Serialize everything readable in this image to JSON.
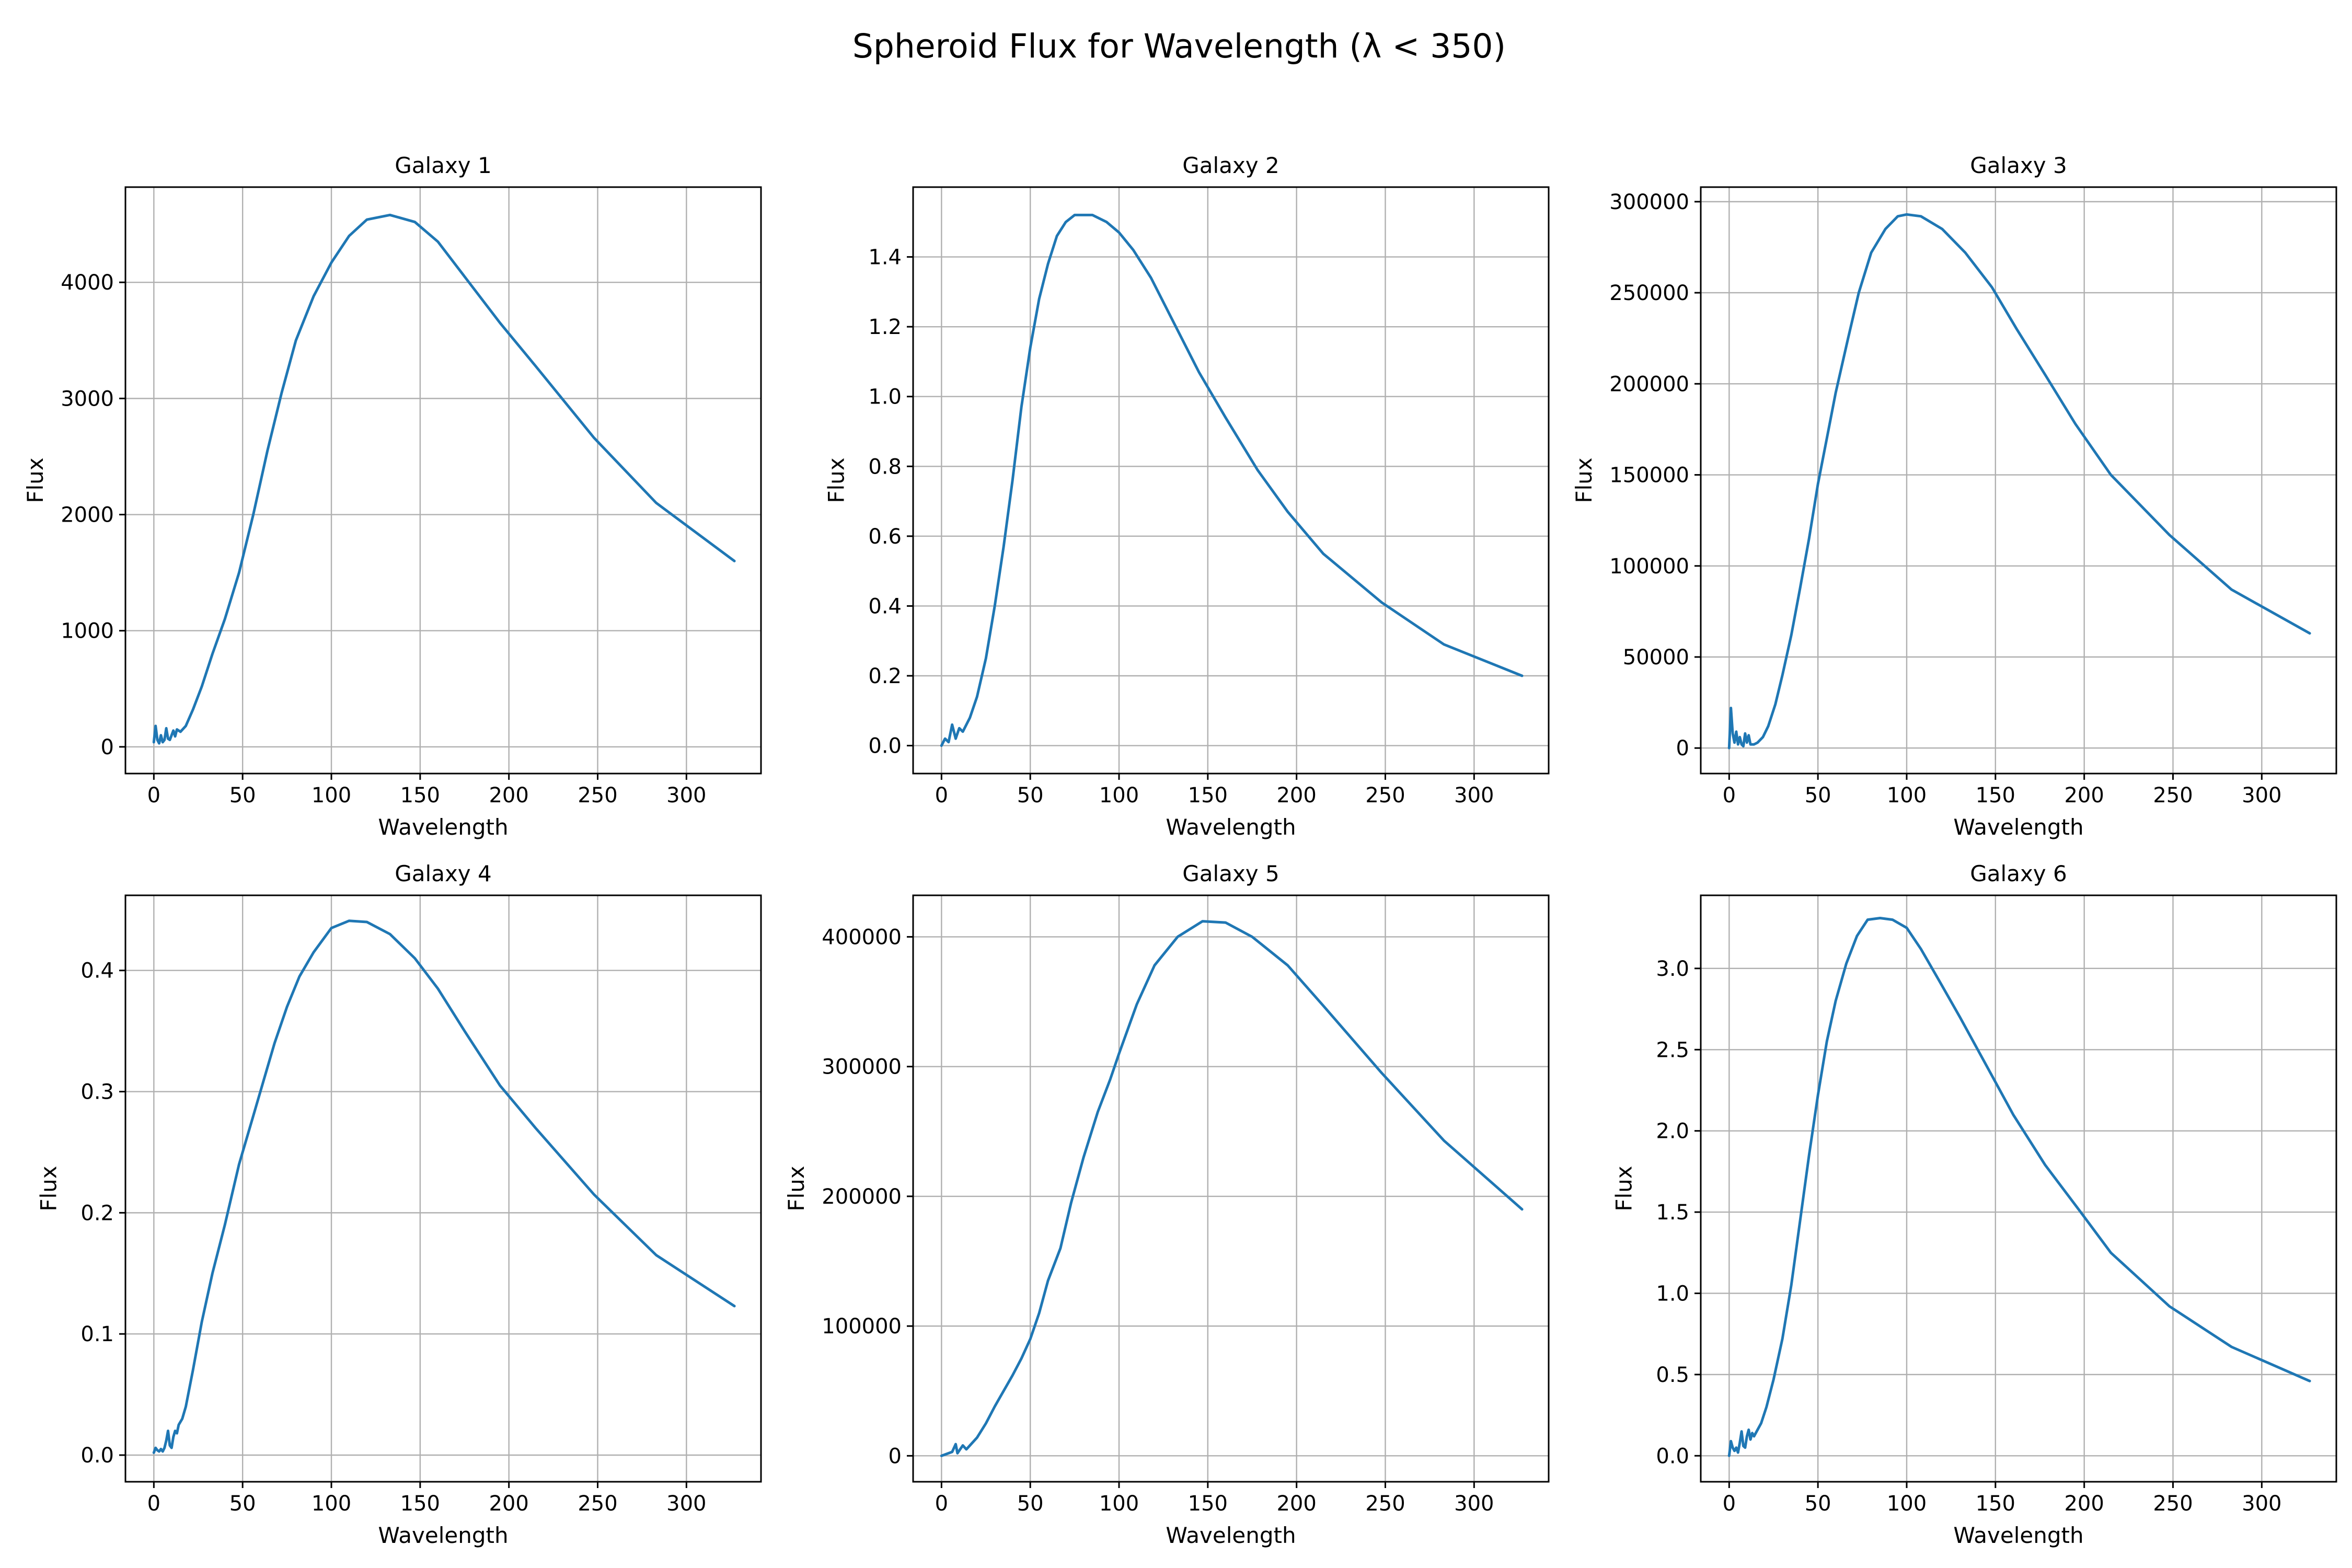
{
  "figure": {
    "title": "Spheroid Flux for Wavelength (λ < 350)"
  },
  "colors": {
    "series": "#1f77b4"
  },
  "chart_data": [
    {
      "type": "line",
      "title": "Galaxy 1",
      "xlabel": "Wavelength",
      "ylabel": "Flux",
      "xlim": [
        -16,
        342
      ],
      "ylim": [
        -230,
        4820
      ],
      "xticks": [
        0,
        50,
        100,
        150,
        200,
        250,
        300
      ],
      "yticks": [
        0,
        1000,
        2000,
        3000,
        4000
      ],
      "ytick_labels": [
        "0",
        "1000",
        "2000",
        "3000",
        "4000"
      ],
      "grid": true,
      "series": [
        {
          "x": [
            0,
            1,
            2,
            3,
            4,
            5,
            6,
            7,
            8,
            9,
            10,
            11,
            12,
            13,
            15,
            18,
            22,
            27,
            33,
            40,
            48,
            56,
            64,
            72,
            80,
            90,
            100,
            110,
            120,
            133,
            147,
            160,
            175,
            195,
            215,
            248,
            283,
            327
          ],
          "y": [
            40,
            180,
            60,
            30,
            100,
            40,
            60,
            160,
            70,
            60,
            100,
            140,
            90,
            150,
            130,
            180,
            320,
            520,
            800,
            1100,
            1500,
            2000,
            2550,
            3050,
            3500,
            3880,
            4170,
            4400,
            4540,
            4580,
            4520,
            4350,
            4050,
            3650,
            3280,
            2660,
            2100,
            1600
          ]
        }
      ]
    },
    {
      "type": "line",
      "title": "Galaxy 2",
      "xlabel": "Wavelength",
      "ylabel": "Flux",
      "xlim": [
        -16,
        342
      ],
      "ylim": [
        -0.08,
        1.6
      ],
      "xticks": [
        0,
        50,
        100,
        150,
        200,
        250,
        300
      ],
      "yticks": [
        0,
        0.2,
        0.4,
        0.6,
        0.8,
        1.0,
        1.2,
        1.4
      ],
      "ytick_labels": [
        "0.0",
        "0.2",
        "0.4",
        "0.6",
        "0.8",
        "1.0",
        "1.2",
        "1.4"
      ],
      "grid": true,
      "series": [
        {
          "x": [
            0,
            2,
            4,
            6,
            8,
            10,
            12,
            14,
            16,
            20,
            25,
            30,
            35,
            40,
            45,
            50,
            55,
            60,
            65,
            70,
            75,
            80,
            85,
            93,
            100,
            108,
            118,
            130,
            145,
            160,
            178,
            195,
            215,
            248,
            283,
            327
          ],
          "y": [
            0.0,
            0.02,
            0.01,
            0.06,
            0.02,
            0.05,
            0.04,
            0.06,
            0.08,
            0.14,
            0.25,
            0.4,
            0.57,
            0.76,
            0.97,
            1.14,
            1.28,
            1.38,
            1.46,
            1.5,
            1.52,
            1.52,
            1.52,
            1.5,
            1.47,
            1.42,
            1.34,
            1.22,
            1.07,
            0.94,
            0.79,
            0.67,
            0.55,
            0.41,
            0.29,
            0.2
          ]
        }
      ]
    },
    {
      "type": "line",
      "title": "Galaxy 3",
      "xlabel": "Wavelength",
      "ylabel": "Flux",
      "xlim": [
        -16,
        342
      ],
      "ylim": [
        -14000,
        308000
      ],
      "xticks": [
        0,
        50,
        100,
        150,
        200,
        250,
        300
      ],
      "yticks": [
        0,
        50000,
        100000,
        150000,
        200000,
        250000,
        300000
      ],
      "ytick_labels": [
        "0",
        "50000",
        "100000",
        "150000",
        "200000",
        "250000",
        "300000"
      ],
      "grid": true,
      "series": [
        {
          "x": [
            0,
            1,
            2,
            3,
            4,
            5,
            6,
            7,
            8,
            9,
            10,
            11,
            12,
            14,
            16,
            19,
            22,
            26,
            30,
            35,
            40,
            45,
            50,
            55,
            60,
            67,
            73,
            80,
            88,
            95,
            100,
            108,
            120,
            133,
            148,
            162,
            178,
            195,
            215,
            248,
            283,
            327
          ],
          "y": [
            0,
            22000,
            8000,
            3000,
            9000,
            2000,
            6000,
            2000,
            1000,
            8000,
            3000,
            7000,
            2000,
            2000,
            3000,
            6000,
            12000,
            24000,
            40000,
            62000,
            88000,
            115000,
            145000,
            170000,
            195000,
            225000,
            250000,
            272000,
            285000,
            292000,
            293000,
            292000,
            285000,
            272000,
            253000,
            230000,
            205000,
            178000,
            150000,
            117000,
            87000,
            63000
          ]
        }
      ]
    },
    {
      "type": "line",
      "title": "Galaxy 4",
      "xlabel": "Wavelength",
      "ylabel": "Flux",
      "xlim": [
        -16,
        342
      ],
      "ylim": [
        -0.022,
        0.462
      ],
      "xticks": [
        0,
        50,
        100,
        150,
        200,
        250,
        300
      ],
      "yticks": [
        0,
        0.1,
        0.2,
        0.3,
        0.4
      ],
      "ytick_labels": [
        "0.0",
        "0.1",
        "0.2",
        "0.3",
        "0.4"
      ],
      "grid": true,
      "series": [
        {
          "x": [
            0,
            1,
            2,
            3,
            4,
            5,
            6,
            7,
            8,
            9,
            10,
            11,
            12,
            13,
            14,
            16,
            18,
            22,
            27,
            33,
            40,
            48,
            56,
            62,
            68,
            75,
            82,
            90,
            100,
            110,
            120,
            133,
            147,
            160,
            175,
            195,
            215,
            248,
            283,
            327
          ],
          "y": [
            0.002,
            0.006,
            0.004,
            0.003,
            0.005,
            0.003,
            0.006,
            0.012,
            0.02,
            0.008,
            0.006,
            0.015,
            0.02,
            0.018,
            0.025,
            0.03,
            0.04,
            0.07,
            0.11,
            0.15,
            0.19,
            0.24,
            0.28,
            0.31,
            0.34,
            0.37,
            0.395,
            0.415,
            0.435,
            0.441,
            0.44,
            0.43,
            0.41,
            0.385,
            0.35,
            0.305,
            0.27,
            0.215,
            0.165,
            0.123
          ]
        }
      ]
    },
    {
      "type": "line",
      "title": "Galaxy 5",
      "xlabel": "Wavelength",
      "ylabel": "Flux",
      "xlim": [
        -16,
        342
      ],
      "ylim": [
        -20000,
        432000
      ],
      "xticks": [
        0,
        50,
        100,
        150,
        200,
        250,
        300
      ],
      "yticks": [
        0,
        100000,
        200000,
        300000,
        400000
      ],
      "ytick_labels": [
        "0",
        "100000",
        "200000",
        "300000",
        "400000"
      ],
      "grid": true,
      "series": [
        {
          "x": [
            0,
            2,
            4,
            6,
            8,
            9,
            10,
            12,
            14,
            16,
            20,
            25,
            30,
            35,
            40,
            45,
            50,
            55,
            60,
            67,
            73,
            80,
            88,
            95,
            100,
            110,
            120,
            133,
            147,
            160,
            175,
            195,
            215,
            248,
            283,
            327
          ],
          "y": [
            0,
            1000,
            2000,
            3000,
            9000,
            2000,
            4000,
            8000,
            5000,
            8000,
            14000,
            25000,
            38000,
            50000,
            62000,
            75000,
            90000,
            110000,
            135000,
            160000,
            195000,
            230000,
            265000,
            290000,
            310000,
            348000,
            378000,
            400000,
            412000,
            411000,
            400000,
            378000,
            347000,
            295000,
            243000,
            190000
          ]
        }
      ]
    },
    {
      "type": "line",
      "title": "Galaxy 6",
      "xlabel": "Wavelength",
      "ylabel": "Flux",
      "xlim": [
        -16,
        342
      ],
      "ylim": [
        -0.16,
        3.45
      ],
      "xticks": [
        0,
        50,
        100,
        150,
        200,
        250,
        300
      ],
      "yticks": [
        0,
        0.5,
        1.0,
        1.5,
        2.0,
        2.5,
        3.0
      ],
      "ytick_labels": [
        "0.0",
        "0.5",
        "1.0",
        "1.5",
        "2.0",
        "2.5",
        "3.0"
      ],
      "grid": true,
      "series": [
        {
          "x": [
            0,
            1,
            2,
            3,
            4,
            5,
            6,
            7,
            8,
            9,
            10,
            11,
            12,
            13,
            14,
            16,
            18,
            21,
            25,
            30,
            35,
            40,
            45,
            50,
            55,
            60,
            66,
            72,
            78,
            85,
            92,
            100,
            108,
            118,
            130,
            145,
            160,
            178,
            198,
            215,
            248,
            283,
            327
          ],
          "y": [
            0.0,
            0.09,
            0.05,
            0.03,
            0.05,
            0.02,
            0.08,
            0.15,
            0.06,
            0.05,
            0.12,
            0.16,
            0.1,
            0.14,
            0.12,
            0.16,
            0.2,
            0.3,
            0.47,
            0.72,
            1.05,
            1.45,
            1.85,
            2.22,
            2.55,
            2.8,
            3.03,
            3.2,
            3.3,
            3.31,
            3.3,
            3.25,
            3.12,
            2.93,
            2.7,
            2.4,
            2.1,
            1.79,
            1.5,
            1.25,
            0.92,
            0.67,
            0.46
          ]
        }
      ]
    }
  ]
}
